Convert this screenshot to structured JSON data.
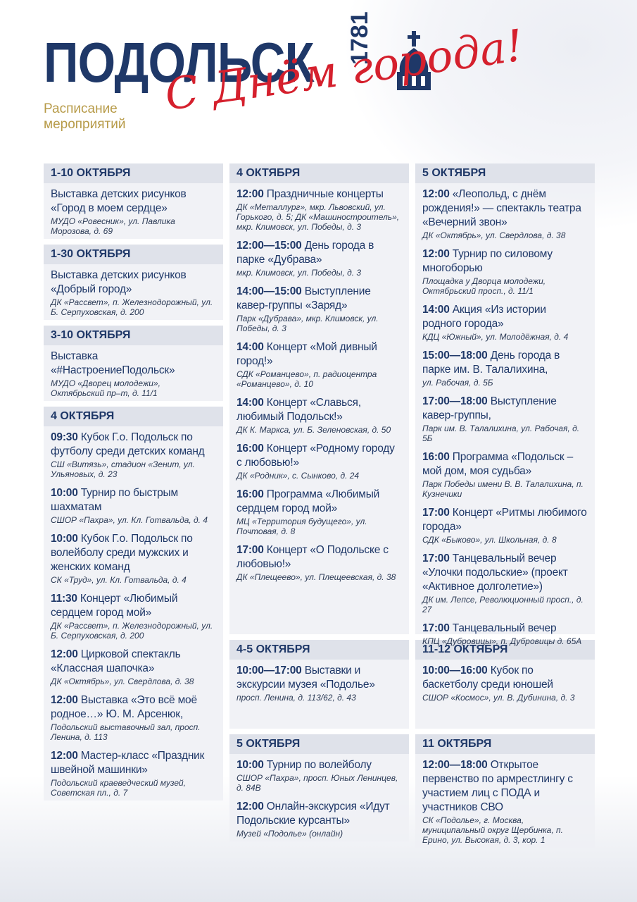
{
  "header": {
    "title": "ПОДОЛЬСК",
    "year": "1781",
    "subtitle": "Расписание мероприятий",
    "slogan": "С Днём города!"
  },
  "columns": [
    {
      "sections": [
        {
          "heading": "1-10 ОКТЯБРЯ",
          "events": [
            {
              "text": "Выставка детских рисунков «Город в моем сердце»",
              "place": "МУДО «Ровесник», ул. Павлика Морозова, д. 69"
            }
          ]
        },
        {
          "heading": "1-30 ОКТЯБРЯ",
          "events": [
            {
              "text": "Выставка детских рисунков «Добрый город»",
              "place": "ДК «Рассвет», п. Железнодорожный, ул. Б. Серпуховская, д. 200"
            }
          ]
        },
        {
          "heading": "3-10 ОКТЯБРЯ",
          "events": [
            {
              "text": "Выставка «#НастроениеПодольск»",
              "place": "МУДО «Дворец молодежи», Октябрьский пр–т, д. 11/1"
            }
          ]
        },
        {
          "heading": "4 ОКТЯБРЯ",
          "events": [
            {
              "time": "09:30",
              "text": "Кубок Г.о. Подольск по футболу среди детских команд",
              "place": "СШ «Витязь», стадион «Зенит, ул. Ульяновых, д. 23"
            },
            {
              "time": "10:00",
              "text": "Турнир по быстрым шахматам",
              "place": "СШОР «Пахра», ул. Кл. Готвальда, д. 4"
            },
            {
              "time": "10:00",
              "text": "Кубок Г.о. Подольск по волейболу среди мужских и женских команд",
              "place": "СК «Труд», ул. Кл. Готвальда, д. 4"
            },
            {
              "time": "11:30",
              "text": "Концерт «Любимый сердцем город мой»",
              "place": "ДК «Рассвет», п. Железнодорожный, ул. Б. Серпуховская, д. 200"
            },
            {
              "time": "12:00",
              "text": "Цирковой спектакль «Классная шапочка»",
              "place": "ДК «Октябрь», ул. Свердлова, д. 38"
            },
            {
              "time": "12:00",
              "text": "Выставка «Это всё моё родное…» Ю. М. Арсенюк,",
              "place": "Подольский выставочный зал, просп. Ленина, д. 113"
            },
            {
              "time": "12:00",
              "text": "Мастер-класс «Праздник швейной машинки»",
              "place": "Подольский краеведческий музей, Советская пл., д. 7"
            }
          ]
        }
      ]
    },
    {
      "sections": [
        {
          "heading": "4 ОКТЯБРЯ",
          "events": [
            {
              "time": "12:00",
              "text": "Праздничные концерты",
              "place": "ДК «Металлург», мкр. Львовский, ул. Горького, д. 5; ДК «Машиностроитель», мкр. Климовск, ул. Победы, д. 3"
            },
            {
              "time": "12:00—15:00",
              "text": "День города в парке «Дубрава»",
              "place": "мкр. Климовск, ул. Победы, д. 3"
            },
            {
              "time": "14:00—15:00",
              "text": "Выступление кавер-группы «Заряд»",
              "place": "Парк «Дубрава», мкр. Климовск, ул. Победы, д. 3"
            },
            {
              "time": "14:00",
              "text": "Концерт «Мой дивный город!»",
              "place": "СДК «Романцево», п. радиоцентра «Романцево», д. 10"
            },
            {
              "time": "14:00",
              "text": "Концерт «Славься, любимый Подольск!»",
              "place": "ДК К. Маркса, ул. Б. Зеленовская, д. 50"
            },
            {
              "time": "16:00",
              "text": "Концерт «Родному городу с любовью!»",
              "place": "ДК «Родник», с. Сынково, д. 24"
            },
            {
              "time": "16:00",
              "text": "Программа «Любимый сердцем город мой»",
              "place": "МЦ «Территория будущего», ул. Почтовая, д. 8"
            },
            {
              "time": "17:00",
              "text": "Концерт «О Подольске с любовью!»",
              "place": "ДК «Плещеево», ул. Плещеевская, д. 38"
            }
          ]
        },
        {
          "heading": "4-5 ОКТЯБРЯ",
          "events": [
            {
              "time": "10:00—17:00",
              "text": "Выставки и экскурсии музея «Подолье»",
              "place": "просп. Ленина, д. 113/62, д. 43"
            }
          ]
        },
        {
          "heading": "5 ОКТЯБРЯ",
          "events": [
            {
              "time": "10:00",
              "text": "Турнир по волейболу",
              "place": "СШОР «Пахра», просп. Юных Ленинцев, д. 84В"
            },
            {
              "time": "12:00",
              "text": "Онлайн-экскурсия «Идут Подольские курсанты»",
              "place": "Музей «Подолье» (онлайн)"
            }
          ]
        }
      ]
    },
    {
      "sections": [
        {
          "heading": "5 ОКТЯБРЯ",
          "events": [
            {
              "time": "12:00",
              "text": "«Леопольд, с днём рождения!» — спектакль театра «Вечерний звон»",
              "place": "ДК «Октябрь», ул. Свердлова, д. 38"
            },
            {
              "time": "12:00",
              "text": "Турнир по силовому многоборью",
              "place": "Площадка у Дворца молодежи, Октябрьский просп., д. 11/1"
            },
            {
              "time": "14:00",
              "text": "Акция «Из истории родного города»",
              "place": "КДЦ «Южный», ул. Молодёжная, д. 4"
            },
            {
              "time": "15:00—18:00",
              "text": "День города в парке им. В. Талалихина,",
              "place": "ул. Рабочая, д. 5Б"
            },
            {
              "time": "17:00—18:00",
              "text": "Выступление кавер-группы,",
              "place": "Парк им. В. Талалихина, ул. Рабочая, д. 5Б"
            },
            {
              "time": "16:00",
              "text": "Программа «Подольск – мой дом, моя судьба»",
              "place": "Парк Победы имени В. В. Талалихина, п. Кузнечики"
            },
            {
              "time": "17:00",
              "text": "Концерт «Ритмы любимого города»",
              "place": "СДК «Быково», ул. Школьная, д. 8"
            },
            {
              "time": "17:00",
              "text": "Танцевальный вечер «Улочки подольские» (проект «Активное долголетие»)",
              "place": "ДК им. Лепсе, Революционный просп., д. 27"
            },
            {
              "time": "17:00",
              "text": "Танцевальный вечер",
              "place": "КПЦ «Дубровицы», п. Дубровицы д. 65А"
            }
          ]
        },
        {
          "heading": "11-12 ОКТЯБРЯ",
          "events": [
            {
              "time": "10:00—16:00",
              "text": "Кубок по баскетболу среди юношей",
              "place": "СШОР «Космос», ул. В. Дубинина, д. 3"
            }
          ]
        },
        {
          "heading": "11 ОКТЯБРЯ",
          "events": [
            {
              "time": "12:00—18:00",
              "text": "Открытое первенство по армрестлингу с участием лиц с ПОДА и участников СВО",
              "place": "СК «Подолье», г. Москва, муниципальный округ Щербинка, п. Ерино, ул. Высокая, д. 3, кор. 1"
            }
          ]
        }
      ]
    }
  ]
}
